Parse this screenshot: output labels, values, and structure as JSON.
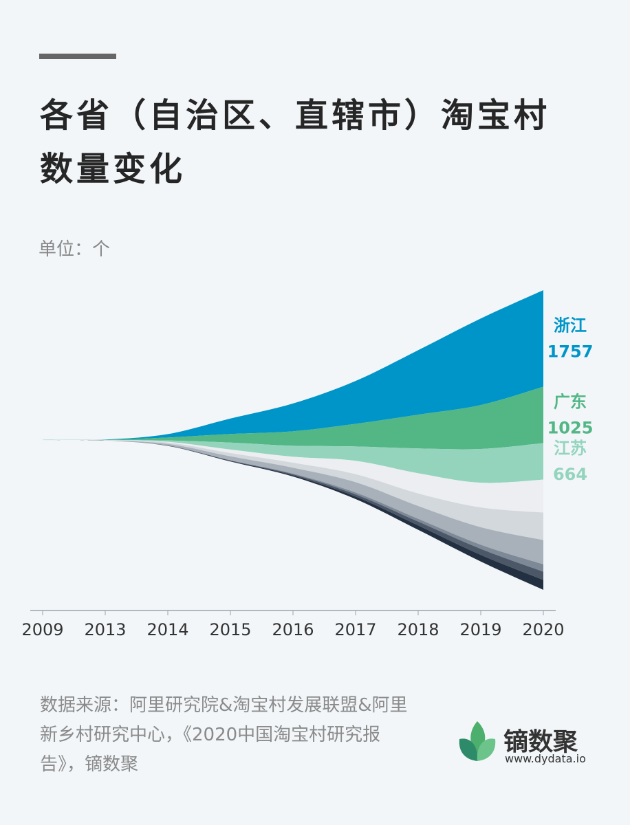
{
  "chart_data": {
    "type": "streamgraph",
    "title": [
      "各省（自治区、直辖市）淘宝村",
      "数量变化"
    ],
    "unit": "单位：个",
    "source": "数据来源：阿里研究院&淘宝村发展联盟&阿里新乡村研究中心，《2020中国淘宝村研究报告》，镝数聚",
    "brand": "镝数聚",
    "brand_url": "www.dydata.io",
    "categories": [
      "2009",
      "2013",
      "2014",
      "2015",
      "2016",
      "2017",
      "2018",
      "2019",
      "2020"
    ],
    "series": [
      {
        "name": "浙江",
        "color": "#0095c8",
        "values": [
          1,
          6,
          62,
          280,
          506,
          779,
          1172,
          1573,
          1757
        ]
      },
      {
        "name": "广东",
        "color": "#52b685",
        "values": [
          0,
          2,
          54,
          157,
          262,
          411,
          614,
          798,
          1025
        ]
      },
      {
        "name": "江苏",
        "color": "#94d4bd",
        "values": [
          1,
          3,
          25,
          127,
          201,
          262,
          452,
          615,
          664
        ]
      },
      {
        "color": "#eceef1",
        "values": [
          0,
          4,
          13,
          64,
          108,
          243,
          367,
          450,
          598
        ]
      },
      {
        "color": "#d3d8dd",
        "values": [
          1,
          2,
          25,
          59,
          91,
          146,
          229,
          359,
          500
        ]
      },
      {
        "color": "#a8b0ba",
        "values": [
          0,
          2,
          28,
          71,
          107,
          187,
          233,
          318,
          441
        ]
      },
      {
        "color": "#7e8997",
        "values": [
          0,
          0,
          1,
          4,
          13,
          34,
          50,
          75,
          135
        ]
      },
      {
        "color": "#4c5868",
        "values": [
          0,
          0,
          3,
          8,
          20,
          40,
          70,
          110,
          150
        ]
      },
      {
        "color": "#233042",
        "values": [
          0,
          1,
          4,
          10,
          20,
          45,
          80,
          120,
          180
        ]
      }
    ]
  }
}
